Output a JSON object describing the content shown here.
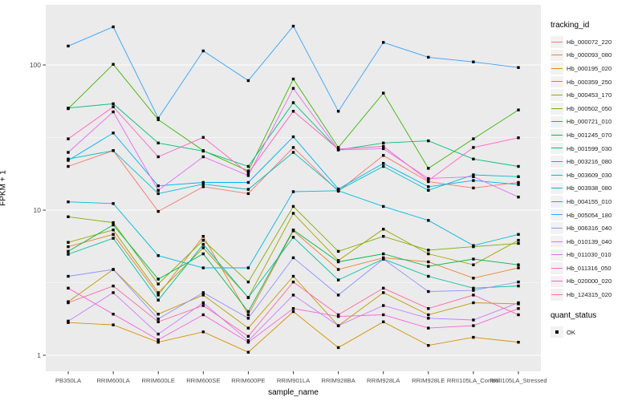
{
  "labels": {
    "xlabel": "sample_name",
    "ylabel": "FPKM + 1",
    "tracking_legend_title": "tracking_id",
    "quant_legend_title": "quant_status",
    "quant_ok_label": "OK"
  },
  "style": {
    "panel_bg": "#EBEBEB",
    "grid_color": "#FFFFFF",
    "tick_label_color": "#4D4D4D",
    "tick_mark_color": "#333333",
    "point_color": "#000000",
    "legend_key_bg": "#F2F2F2"
  },
  "chart_data": {
    "type": "line",
    "title": "",
    "xlabel": "sample_name",
    "ylabel": "FPKM + 1",
    "y_scale": "log10",
    "ylim": [
      0.8,
      260
    ],
    "yticks": [
      1,
      10,
      100
    ],
    "minor_gridlines": [
      3.1623,
      31.623
    ],
    "grid": true,
    "legend_position": "right",
    "point_marker": "filled-black-square (quant_status = OK at every point)",
    "categories": [
      "PB350LA",
      "RRIM600LA",
      "RRIM600LE",
      "RRIM600SE",
      "RRIM600PE",
      "RRIM901LA",
      "RRIM928BA",
      "RRIM928LA",
      "RRIM928LE",
      "RRII105LA_Control",
      "RRII105LA_Stressed"
    ],
    "series": [
      {
        "name": "Hb_000072_220",
        "color": "#F8766D",
        "values": [
          20,
          25.7,
          9.8,
          14.5,
          13,
          27,
          13.5,
          23.8,
          15.7,
          14.2,
          15.5
        ]
      },
      {
        "name": "Hb_000093_080",
        "color": "#EA8331",
        "values": [
          5.6,
          6.8,
          2.6,
          6.6,
          1.9,
          7.2,
          3.9,
          4.7,
          4.4,
          3.4,
          4.0
        ]
      },
      {
        "name": "Hb_000195_020",
        "color": "#D89000",
        "values": [
          1.68,
          1.62,
          1.23,
          1.45,
          1.05,
          2.0,
          1.13,
          1.7,
          1.17,
          1.33,
          1.23
        ]
      },
      {
        "name": "Hb_000359_250",
        "color": "#C09B00",
        "values": [
          2.34,
          3.9,
          1.92,
          2.6,
          1.54,
          3.5,
          1.6,
          2.7,
          1.9,
          2.3,
          2.26
        ]
      },
      {
        "name": "Hb_000453_170",
        "color": "#A3A500",
        "values": [
          6.0,
          7.3,
          2.7,
          5.5,
          2.5,
          9.5,
          4.5,
          7.4,
          5.0,
          4.2,
          6.2
        ]
      },
      {
        "name": "Hb_000502_050",
        "color": "#7CAE00",
        "values": [
          9.0,
          8.2,
          3.1,
          6.2,
          3.2,
          10.6,
          5.2,
          6.6,
          5.3,
          5.6,
          5.9
        ]
      },
      {
        "name": "Hb_000721_010",
        "color": "#39B600",
        "values": [
          50,
          101,
          42,
          25.7,
          18.6,
          80,
          27,
          64,
          19.4,
          31,
          49
        ]
      },
      {
        "name": "Hb_001245_070",
        "color": "#00BB4E",
        "values": [
          5.2,
          7.9,
          3.35,
          5.0,
          2.0,
          7.3,
          4.4,
          5.0,
          4.1,
          4.6,
          4.2
        ]
      },
      {
        "name": "Hb_001599_030",
        "color": "#00BF7D",
        "values": [
          50.5,
          54,
          29,
          25.5,
          20,
          55,
          26,
          29,
          30,
          22.5,
          20
        ]
      },
      {
        "name": "Hb_003216_080",
        "color": "#00C1A3",
        "values": [
          4.97,
          6.4,
          2.4,
          5.8,
          2.5,
          6.5,
          3.3,
          4.6,
          3.5,
          2.9,
          3.0
        ]
      },
      {
        "name": "Hb_003609_030",
        "color": "#00BFC4",
        "values": [
          22.5,
          25.7,
          13.0,
          15.1,
          13.9,
          25,
          13.7,
          20,
          13.7,
          17.5,
          17
        ]
      },
      {
        "name": "Hb_003938_080",
        "color": "#00BAE0",
        "values": [
          11.4,
          11.1,
          4.86,
          4.0,
          4.0,
          13.4,
          13.6,
          10.6,
          8.5,
          5.7,
          6.8
        ]
      },
      {
        "name": "Hb_004155_010",
        "color": "#00B0F6",
        "values": [
          22,
          34,
          14.7,
          15.5,
          15.5,
          32,
          14,
          21,
          14.5,
          16,
          15
        ]
      },
      {
        "name": "Hb_005054_180",
        "color": "#35A2FF",
        "values": [
          135,
          183,
          43,
          125,
          78,
          185,
          48,
          143,
          113,
          105,
          96
        ]
      },
      {
        "name": "Hb_006316_040",
        "color": "#9590FF",
        "values": [
          3.5,
          3.9,
          1.78,
          2.7,
          1.8,
          4.7,
          2.6,
          4.6,
          2.75,
          2.8,
          3.2
        ]
      },
      {
        "name": "Hb_010139_040",
        "color": "#C77CFF",
        "values": [
          1.72,
          2.7,
          1.4,
          2.3,
          1.26,
          2.6,
          1.6,
          2.2,
          1.8,
          1.75,
          2.3
        ]
      },
      {
        "name": "Hb_011030_010",
        "color": "#E76BF3",
        "values": [
          25,
          47.5,
          13.7,
          23.3,
          17.3,
          69,
          26,
          26.5,
          16.5,
          17,
          12.3
        ]
      },
      {
        "name": "Hb_011316_050",
        "color": "#FA62DB",
        "values": [
          2.9,
          1.92,
          1.28,
          1.9,
          1.23,
          2.1,
          1.85,
          1.9,
          1.54,
          1.6,
          2.1
        ]
      },
      {
        "name": "Hb_020000_020",
        "color": "#FF61C3",
        "values": [
          31,
          51.5,
          23.3,
          31.7,
          18,
          48,
          26.3,
          27.5,
          16,
          27,
          31.5
        ]
      },
      {
        "name": "Hb_124315_020",
        "color": "#FF67A4",
        "values": [
          2.3,
          3.0,
          1.7,
          2.2,
          1.35,
          3.2,
          1.9,
          2.9,
          2.1,
          2.6,
          1.9
        ]
      }
    ],
    "quant_status_values": [
      "OK"
    ]
  }
}
